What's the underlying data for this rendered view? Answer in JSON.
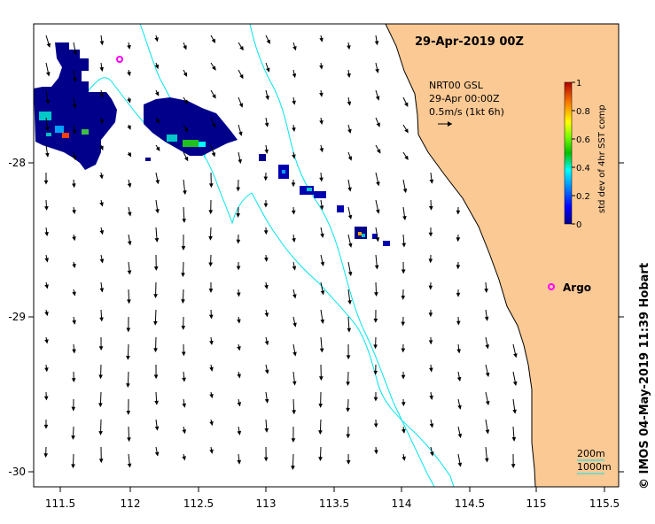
{
  "map": {
    "title": "29-Apr-2019 00Z",
    "x_ticks": [
      "111.5",
      "112",
      "112.5",
      "113",
      "113.5",
      "114",
      "114.5",
      "115",
      "115.5"
    ],
    "y_ticks": [
      "-28",
      "-29",
      "-30"
    ],
    "lon_range": [
      111.3,
      115.65
    ],
    "lat_range": [
      -30.1,
      -27.1
    ],
    "current_label_1": "NRT00 GSL",
    "current_label_2": "29-Apr 00:00Z",
    "current_label_3": "0.5m/s (1kt 6h)",
    "argo_label": "Argo",
    "colorbar_title": "std dev of 4hr SST comp",
    "colorbar_ticks": [
      "0",
      "0.2",
      "0.4",
      "0.6",
      "0.8",
      "1"
    ],
    "colorbar_range": [
      0,
      1
    ],
    "isobath_200": "200m",
    "isobath_1000": "1000m",
    "credit": "© IMOS 04-May-2019 11:39 Hobart",
    "colors": {
      "land": "#fbc994",
      "isobath": "#00e5ee",
      "argo": "#ff00ff",
      "frame": "#000000"
    },
    "argo_floats": [
      {
        "lon": 111.93,
        "lat": -27.4
      },
      {
        "lon": 115.13,
        "lat": -28.81
      }
    ]
  }
}
